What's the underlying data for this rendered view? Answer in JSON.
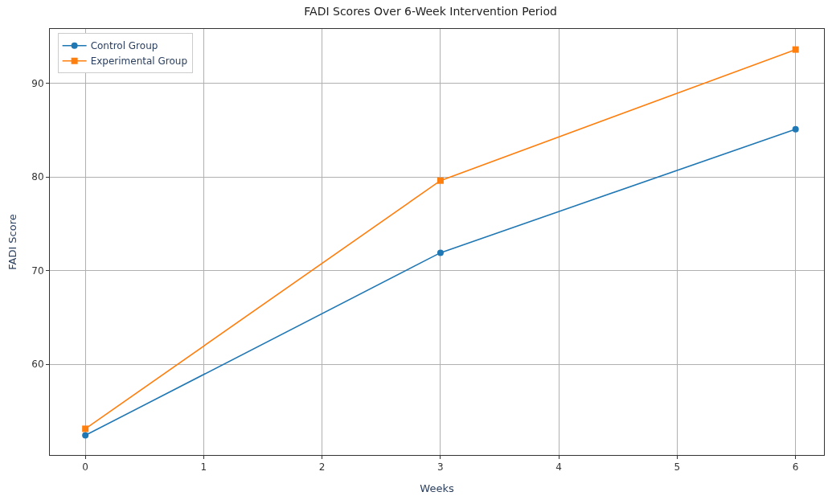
{
  "chart_data": {
    "type": "line",
    "title": "FADI Scores Over 6-Week Intervention Period",
    "xlabel": "Weeks",
    "ylabel": "FADI Score",
    "x": [
      0,
      3,
      6
    ],
    "series": [
      {
        "name": "Control Group",
        "color": "#1f77b4",
        "values": [
          52.4,
          71.9,
          85.1
        ],
        "marker": "circle"
      },
      {
        "name": "Experimental Group",
        "color": "#ff7f0e",
        "values": [
          53.1,
          79.6,
          93.6
        ],
        "marker": "square"
      }
    ],
    "xlim": [
      -0.3,
      6.24
    ],
    "xticks": [
      0,
      1,
      2,
      3,
      4,
      5,
      6
    ],
    "ylim": [
      50.3,
      95.8
    ],
    "yticks": [
      60,
      70,
      80,
      90
    ],
    "grid": true,
    "legend": "top left",
    "line_style": "solid"
  }
}
